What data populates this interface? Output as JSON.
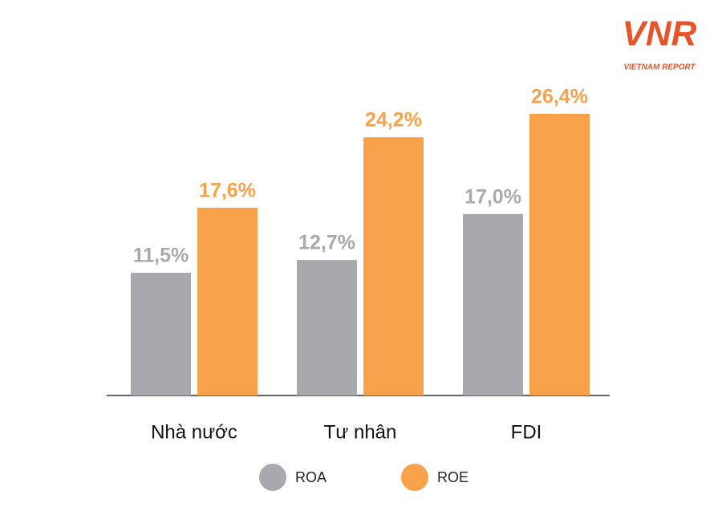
{
  "chart_data": {
    "type": "bar",
    "logo": {
      "mark": "VNR",
      "tagline": "VIETNAM REPORT"
    },
    "categories": [
      "Nhà nước",
      "Tư nhân",
      "FDI"
    ],
    "series": [
      {
        "name": "ROA",
        "color": "#a7a9ac",
        "values": [
          11.5,
          12.7,
          17.0
        ],
        "value_labels": [
          "11,5%",
          "12,7%",
          "17,0%"
        ]
      },
      {
        "name": "ROE",
        "color": "#f7a24b",
        "values": [
          17.6,
          24.2,
          26.4
        ],
        "value_labels": [
          "17,6%",
          "24,2%",
          "26,4%"
        ]
      }
    ]
  }
}
